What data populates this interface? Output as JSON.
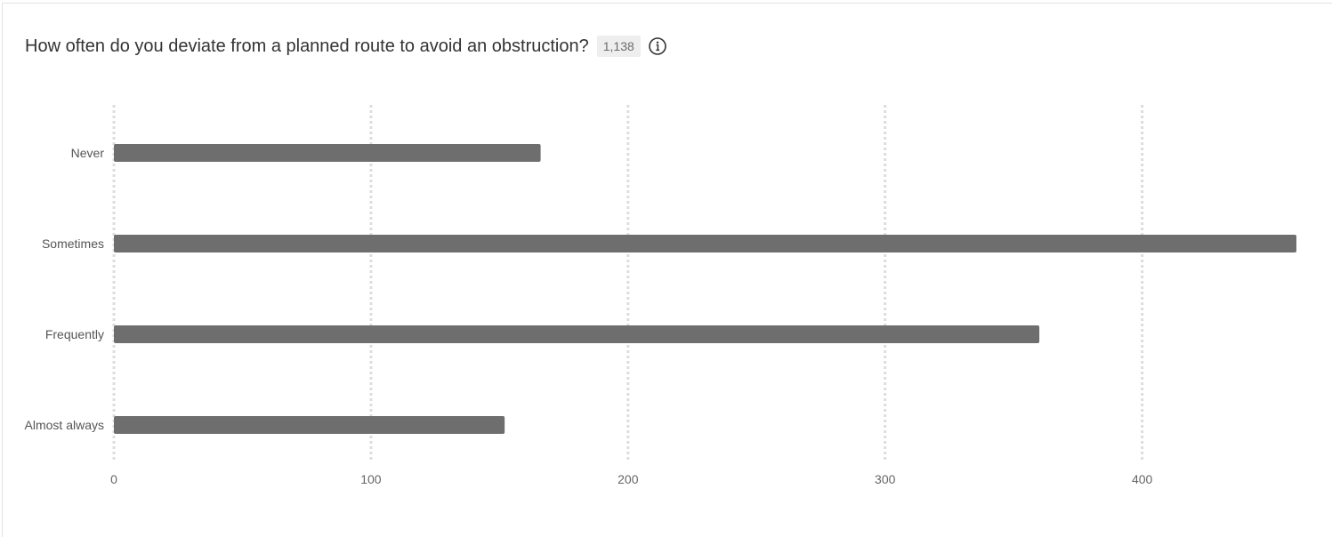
{
  "question": {
    "title": "How often do you deviate from a planned route to avoid an obstruction?",
    "response_count": "1,138",
    "info_icon": "info-circle-icon"
  },
  "colors": {
    "bar": "#6e6e6e",
    "grid": "#dddddd"
  },
  "chart_data": {
    "type": "bar",
    "orientation": "horizontal",
    "categories": [
      "Never",
      "Sometimes",
      "Frequently",
      "Almost always"
    ],
    "values": [
      166,
      460,
      360,
      152
    ],
    "xticks": [
      "0",
      "100",
      "200",
      "300",
      "400"
    ],
    "xlim": [
      0,
      460
    ],
    "grid": true
  }
}
